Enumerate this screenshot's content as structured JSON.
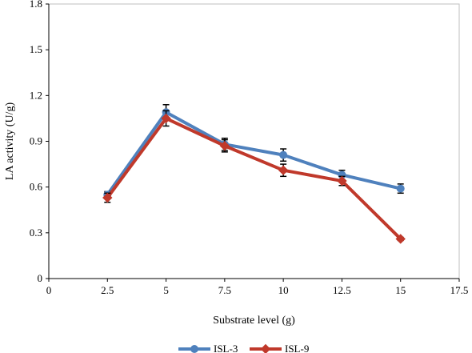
{
  "chart_data": {
    "type": "line",
    "title": "",
    "xlabel": "Substrate level (g)",
    "ylabel": "LA activity (U/g)",
    "xlim": [
      0,
      17.5
    ],
    "ylim": [
      0,
      1.8
    ],
    "x_ticks": [
      0,
      2.5,
      5,
      7.5,
      10,
      12.5,
      15,
      17.5
    ],
    "x_tick_labels": [
      "0",
      "2.5",
      "5",
      "7.5",
      "10",
      "12.5",
      "15",
      "17.5"
    ],
    "y_ticks": [
      0,
      0.3,
      0.6,
      0.9,
      1.2,
      1.5,
      1.8
    ],
    "y_tick_labels": [
      "0",
      "0.3",
      "0.6",
      "0.9",
      "1.2",
      "1.5",
      "1.8"
    ],
    "grid": false,
    "legend_position": "bottom-center",
    "x": [
      2.5,
      5,
      7.5,
      10,
      12.5,
      15
    ],
    "series": [
      {
        "name": "ISL-3",
        "marker": "circle",
        "color": "#4f81bd",
        "values": [
          0.55,
          1.09,
          0.88,
          0.81,
          0.68,
          0.59
        ],
        "errors": [
          0.02,
          0.05,
          0.04,
          0.04,
          0.03,
          0.03
        ]
      },
      {
        "name": "ISL-9",
        "marker": "diamond",
        "color": "#c0392b",
        "values": [
          0.53,
          1.05,
          0.87,
          0.71,
          0.64,
          0.26
        ],
        "errors": [
          0.03,
          0.05,
          0.04,
          0.04,
          0.03,
          0.01
        ]
      }
    ]
  }
}
